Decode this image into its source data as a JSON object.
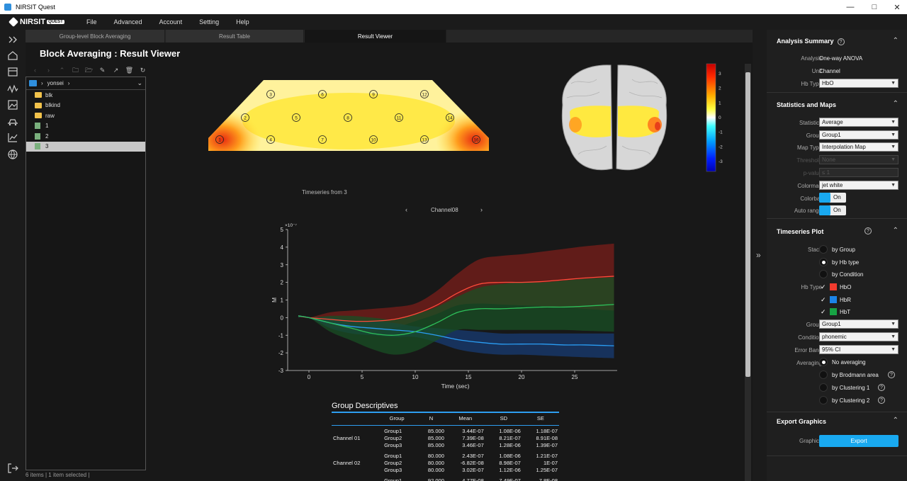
{
  "window": {
    "title": "NIRSIT Quest"
  },
  "brand": {
    "name": "NIRSIT",
    "badge": "QUEST"
  },
  "menu": [
    "File",
    "Advanced",
    "Account",
    "Setting",
    "Help"
  ],
  "tabs": [
    "Group-level Block Averaging",
    "Result Table",
    "Result Viewer"
  ],
  "active_tab": 2,
  "page_title": "Block Averaging : Result Viewer",
  "file_tree": {
    "path": "yonsei",
    "items": [
      {
        "name": "blk",
        "type": "folder"
      },
      {
        "name": "blkind",
        "type": "folder"
      },
      {
        "name": "raw",
        "type": "folder"
      },
      {
        "name": "1",
        "type": "file"
      },
      {
        "name": "2",
        "type": "file"
      },
      {
        "name": "3",
        "type": "file",
        "selected": true
      }
    ],
    "status": "6 items | 1 item selected |"
  },
  "topomap": {
    "channels": [
      "1",
      "2",
      "3",
      "4",
      "5",
      "6",
      "7",
      "8",
      "9",
      "10",
      "11",
      "12",
      "13",
      "14",
      "15",
      "16"
    ]
  },
  "colorbar": {
    "ticks": [
      "3",
      "2",
      "1",
      "0",
      "-1",
      "-2",
      "-3"
    ]
  },
  "timeseries": {
    "caption": "Timeseries from 3",
    "channel": "Channel08"
  },
  "chart_data": {
    "type": "line",
    "xlabel": "Time (sec)",
    "ylabel": "M",
    "y_multiplier": "×10⁻⁷",
    "xlim": [
      -2,
      29
    ],
    "ylim": [
      -3,
      5
    ],
    "xticks": [
      0,
      5,
      10,
      15,
      20,
      25
    ],
    "yticks": [
      5,
      4,
      3,
      2,
      1,
      0,
      -1,
      -2,
      -3
    ],
    "x": [
      -1,
      0,
      2,
      4,
      6,
      8,
      10,
      12,
      14,
      16,
      18,
      20,
      22,
      24,
      26,
      28.7
    ],
    "series": [
      {
        "name": "HbO",
        "color": "#ff4a3a",
        "values": [
          0.1,
          0.0,
          -0.1,
          -0.2,
          -0.2,
          -0.1,
          0.2,
          0.7,
          1.4,
          1.9,
          2.0,
          2.0,
          2.05,
          2.15,
          2.25,
          2.35
        ],
        "lower": [
          0.0,
          0.0,
          -0.5,
          -0.7,
          -0.8,
          -0.6,
          -0.2,
          0.2,
          0.7,
          0.8,
          0.75,
          0.7,
          0.65,
          0.6,
          0.5,
          0.4
        ],
        "upper": [
          0.1,
          0.0,
          0.3,
          0.4,
          0.5,
          0.6,
          0.8,
          1.5,
          2.5,
          3.3,
          3.5,
          3.6,
          3.75,
          3.9,
          4.05,
          4.2
        ]
      },
      {
        "name": "HbR",
        "color": "#2a9df4",
        "values": [
          0.1,
          0.0,
          -0.3,
          -0.5,
          -0.6,
          -0.7,
          -0.8,
          -1.0,
          -1.25,
          -1.4,
          -1.5,
          -1.5,
          -1.5,
          -1.55,
          -1.55,
          -1.6
        ],
        "lower": [
          0.0,
          0.0,
          -0.6,
          -0.9,
          -1.0,
          -1.1,
          -1.1,
          -1.4,
          -1.8,
          -2.0,
          -2.1,
          -2.1,
          -2.15,
          -2.2,
          -2.25,
          -2.3
        ],
        "upper": [
          0.1,
          0.0,
          0.0,
          -0.15,
          -0.2,
          -0.3,
          -0.5,
          -0.6,
          -0.7,
          -0.8,
          -0.9,
          -0.9,
          -0.9,
          -0.9,
          -0.9,
          -0.9
        ]
      },
      {
        "name": "HbT",
        "color": "#2ec05a",
        "values": [
          0.1,
          0.0,
          -0.3,
          -0.6,
          -0.9,
          -1.0,
          -0.8,
          -0.3,
          0.3,
          0.5,
          0.5,
          0.55,
          0.6,
          0.6,
          0.65,
          0.75
        ],
        "lower": [
          0.0,
          0.0,
          -0.8,
          -1.3,
          -1.8,
          -2.1,
          -1.9,
          -1.3,
          -0.7,
          -0.7,
          -0.7,
          -0.7,
          -0.7,
          -0.7,
          -0.75,
          -0.8
        ],
        "upper": [
          0.1,
          0.0,
          0.1,
          0.1,
          0.0,
          -0.1,
          0.2,
          0.6,
          1.2,
          1.7,
          1.9,
          2.0,
          2.0,
          2.1,
          2.2,
          2.3
        ]
      }
    ]
  },
  "group_desc": {
    "title": "Group Descriptives",
    "headers": [
      "",
      "Group",
      "N",
      "Mean",
      "SD",
      "SE"
    ],
    "blocks": [
      {
        "channel": "Channel 01",
        "rows": [
          [
            "Group1",
            "85.000",
            "3.44E-07",
            "1.08E-06",
            "1.18E-07"
          ],
          [
            "Group2",
            "85.000",
            "7.39E-08",
            "8.21E-07",
            "8.91E-08"
          ],
          [
            "Group3",
            "85.000",
            "3.46E-07",
            "1.28E-06",
            "1.39E-07"
          ]
        ]
      },
      {
        "channel": "Channel 02",
        "rows": [
          [
            "Group1",
            "80.000",
            "2.43E-07",
            "1.08E-06",
            "1.21E-07"
          ],
          [
            "Group2",
            "80.000",
            "-6.82E-08",
            "8.98E-07",
            "1E-07"
          ],
          [
            "Group3",
            "80.000",
            "3.02E-07",
            "1.12E-06",
            "1.25E-07"
          ]
        ]
      },
      {
        "channel": "",
        "rows": [
          [
            "Group1",
            "92.000",
            "4.77E-08",
            "7.49E-07",
            "7.8E-08"
          ]
        ]
      }
    ]
  },
  "analysis_summary": {
    "title": "Analysis Summary",
    "analysis_label": "Analysis",
    "analysis": "One-way ANOVA",
    "unit_label": "Unit",
    "unit": "Channel",
    "hbtype_label": "Hb Type",
    "hbtype": "HbO"
  },
  "stats_maps": {
    "title": "Statistics and Maps",
    "statistics_label": "Statistics",
    "statistics": "Average",
    "group_label": "Group",
    "group": "Group1",
    "maptype_label": "Map Type",
    "maptype": "Interpolation Map",
    "threshold_label": "Threshold",
    "threshold": "None",
    "pvalue_label": "p-value",
    "pvalue": "≤ 1",
    "colormap_label": "Colormap",
    "colormap": "jet white",
    "colorbar_label": "Colorbar",
    "colorbar": "On",
    "autorange_label": "Auto range",
    "autorange": "On"
  },
  "ts_plot": {
    "title": "Timeseries Plot",
    "stack_label": "Stack",
    "stack_opts": [
      "by Group",
      "by Hb type",
      "by Condition"
    ],
    "hbtype_label": "Hb Type",
    "hb": [
      {
        "name": "HbO",
        "color": "#f23b2e"
      },
      {
        "name": "HbR",
        "color": "#1c84e8"
      },
      {
        "name": "HbT",
        "color": "#17a344"
      }
    ],
    "group_label": "Group",
    "group": "Group1",
    "condition_label": "Condition",
    "condition": "phonemic",
    "errorband_label": "Error Band",
    "errorband": "95% CI",
    "averaging_label": "Averaging",
    "averaging_opts": [
      "No averaging",
      "by Brodmann area",
      "by Clustering 1",
      "by Clustering 2"
    ]
  },
  "export": {
    "title": "Export Graphics",
    "graphics_label": "Graphics",
    "button": "Export"
  }
}
